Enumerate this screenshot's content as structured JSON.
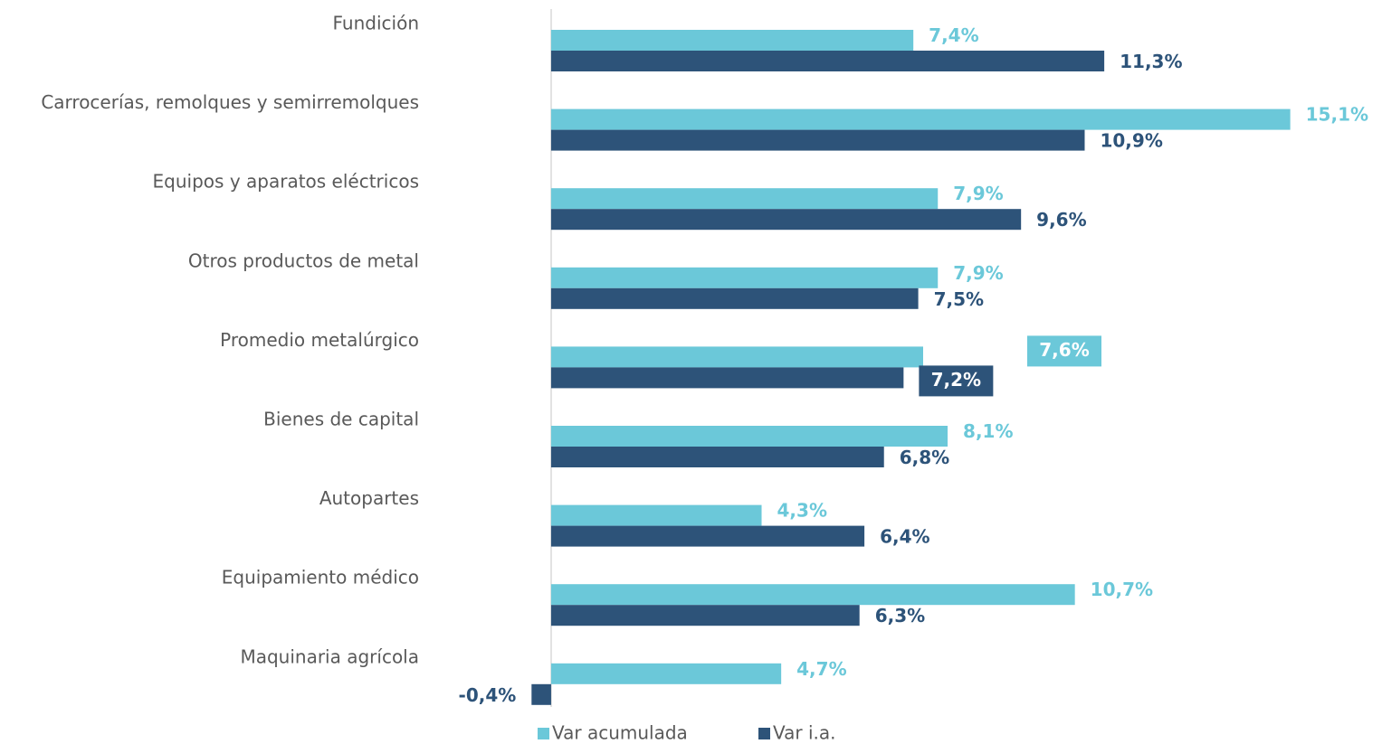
{
  "chart_data": {
    "type": "hbar",
    "categories": [
      "Fundición",
      "Carrocerías, remolques y semirremolques",
      "Equipos y aparatos eléctricos",
      "Otros productos de metal",
      "Promedio metalúrgico",
      "Bienes de capital",
      "Autopartes",
      "Equipamiento médico",
      "Maquinaria agrícola"
    ],
    "series": [
      {
        "name": "Var acumulada",
        "color": "#6bc8d9",
        "values": [
          7.4,
          15.1,
          7.9,
          7.9,
          7.6,
          8.1,
          4.3,
          10.7,
          4.7
        ],
        "value_labels": [
          "7,4%",
          "15,1%",
          "7,9%",
          "7,9%",
          "7,6%",
          "8,1%",
          "4,3%",
          "10,7%",
          "4,7%"
        ]
      },
      {
        "name": "Var i.a.",
        "color": "#2d5379",
        "values": [
          11.3,
          10.9,
          9.6,
          7.5,
          7.2,
          6.8,
          6.4,
          6.3,
          -0.4
        ],
        "value_labels": [
          "11,3%",
          "10,9%",
          "9,6%",
          "7,5%",
          "7,2%",
          "6,8%",
          "6,4%",
          "6,3%",
          "-0,4%"
        ]
      }
    ],
    "xlim": [
      -11,
      16.9
    ],
    "legend": "bottom"
  }
}
